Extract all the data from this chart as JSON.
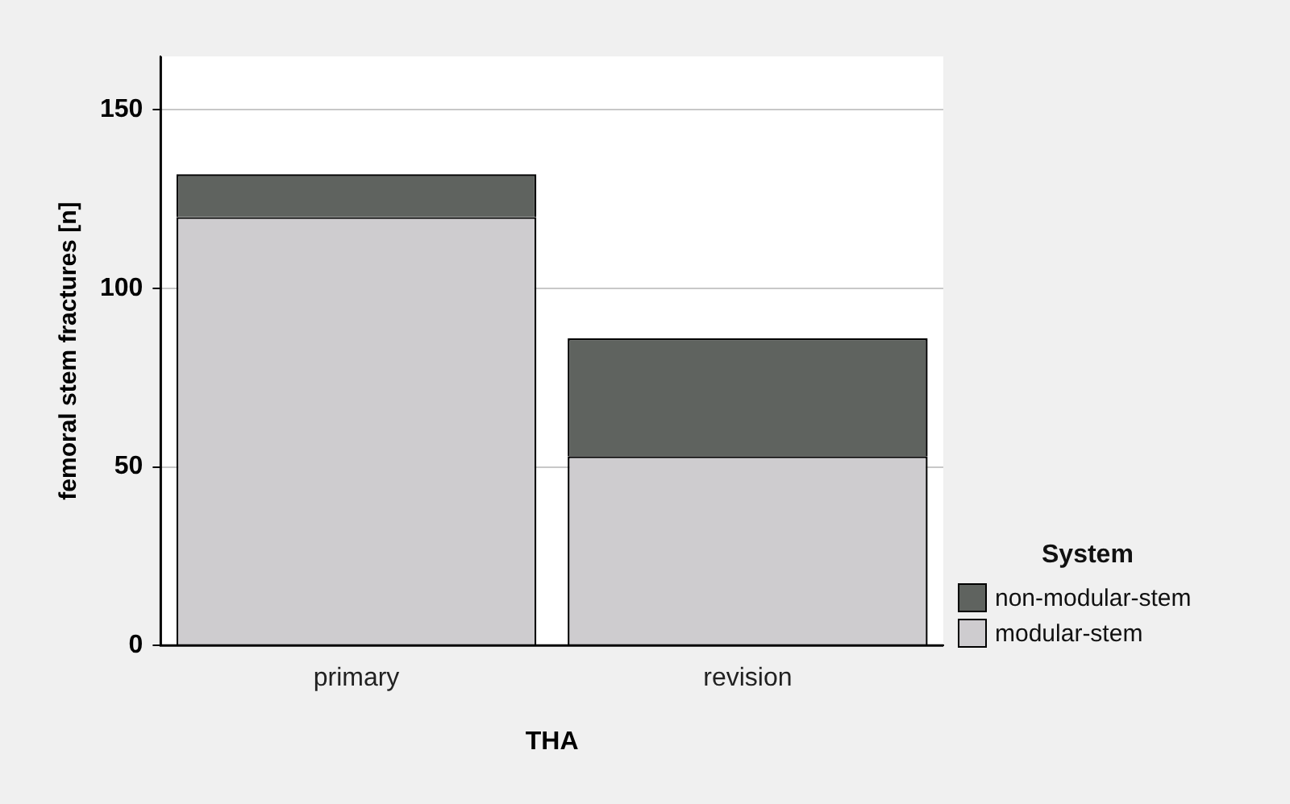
{
  "chart_data": {
    "type": "bar",
    "stacked": true,
    "xlabel": "THA",
    "ylabel": "femoral stem fractures [n]",
    "legend_title": "System",
    "categories": [
      "primary",
      "revision"
    ],
    "series": [
      {
        "name": "modular-stem",
        "color": "#cecccf",
        "values": [
          120,
          53
        ]
      },
      {
        "name": "non-modular-stem",
        "color": "#5f635f",
        "values": [
          12,
          33
        ]
      }
    ],
    "ylim": [
      0,
      165
    ],
    "yticks": [
      0,
      50,
      100,
      150
    ],
    "grid": "y",
    "legend": "right"
  }
}
